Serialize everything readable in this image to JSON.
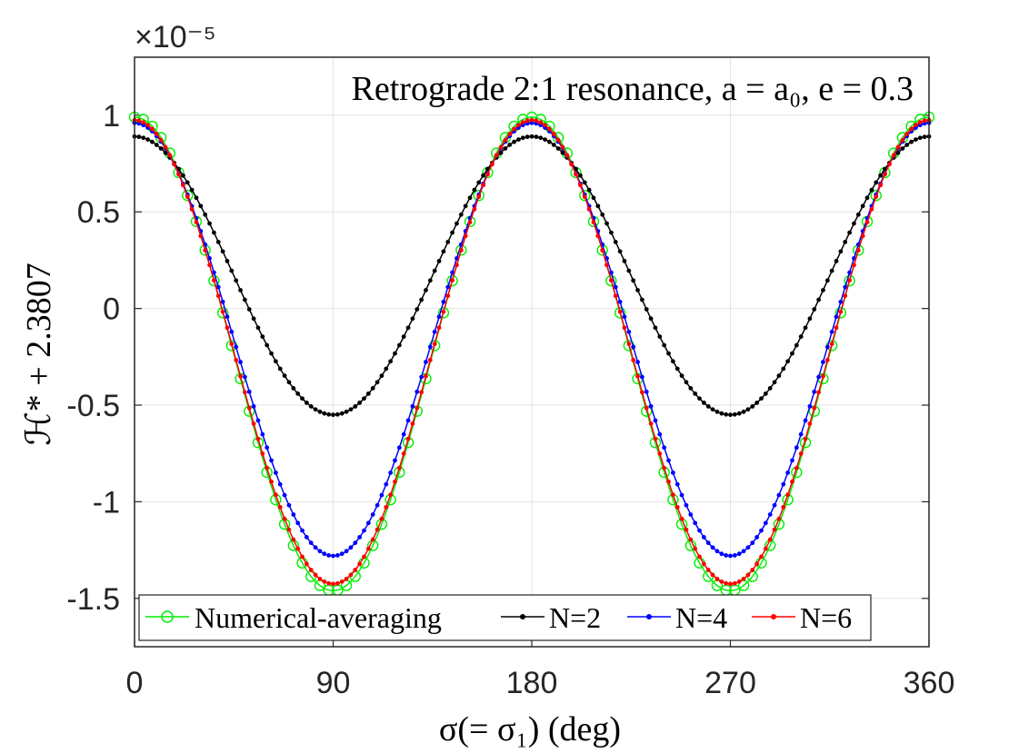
{
  "chart_data": {
    "type": "line",
    "title": "Retrograde 2:1 resonance, a = a₀, e = 0.3",
    "xlabel": "σ(= σ₁) (deg)",
    "ylabel": "ℋ* + 2.3807",
    "y_exponent": "×10⁻⁵",
    "xlim": [
      0,
      360
    ],
    "ylim": [
      -1.75,
      1.3
    ],
    "xticks": [
      0,
      90,
      180,
      270,
      360
    ],
    "xtick_labels": [
      "0",
      "90",
      "180",
      "270",
      "360"
    ],
    "yticks": [
      1,
      0.5,
      0,
      -0.5,
      -1,
      -1.5
    ],
    "ytick_labels": [
      "1",
      "0.5",
      "0",
      "-0.5",
      "-1",
      "-1.5"
    ],
    "grid": true,
    "legend_position": "bottom",
    "series_model": "y = c + A·cos(2σ); curves sampled every 2 deg from 0 to 360",
    "series": [
      {
        "name": "Numerical-averaging",
        "color": "#00ee00",
        "marker": "open-circle",
        "c": -0.235,
        "A": 1.225,
        "step_deg": 4
      },
      {
        "name": "N=2",
        "color": "#000000",
        "marker": "dot",
        "c": 0.17,
        "A": 0.72,
        "step_deg": 2
      },
      {
        "name": "N=4",
        "color": "#0000ff",
        "marker": "dot",
        "c": -0.16,
        "A": 1.12,
        "step_deg": 2
      },
      {
        "name": "N=6",
        "color": "#ff0000",
        "marker": "dot",
        "c": -0.225,
        "A": 1.2,
        "step_deg": 2
      }
    ]
  }
}
